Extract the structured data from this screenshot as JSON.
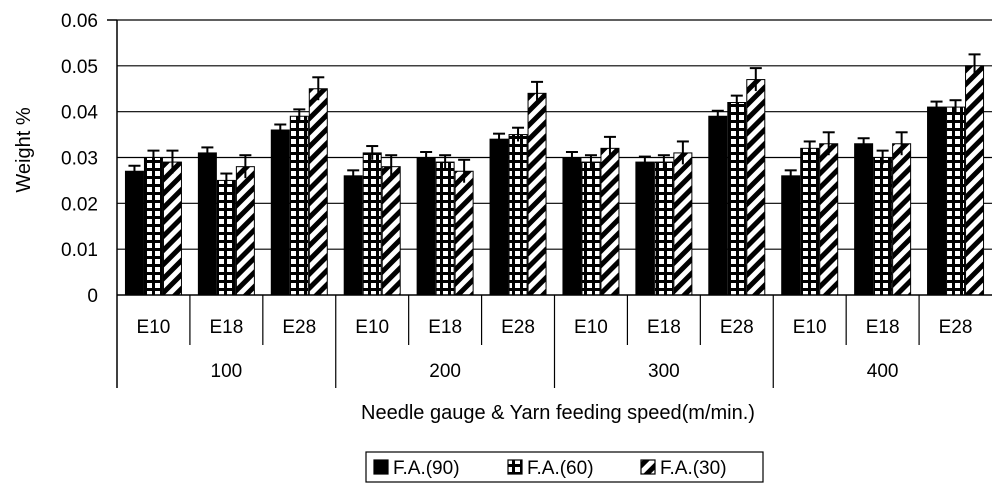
{
  "chart_data": {
    "type": "bar",
    "ylabel": "Weight %",
    "xlabel": "Needle gauge & Yarn feeding speed(m/min.)",
    "ylim": [
      0,
      0.06
    ],
    "yticks": [
      "0",
      "0.01",
      "0.02",
      "0.03",
      "0.04",
      "0.05",
      "0.06"
    ],
    "grid": true,
    "legend_position": "bottom-center",
    "groups": [
      "100",
      "200",
      "300",
      "400"
    ],
    "categories": [
      "E10",
      "E18",
      "E28",
      "E10",
      "E18",
      "E28",
      "E10",
      "E18",
      "E28",
      "E10",
      "E18",
      "E28"
    ],
    "series": [
      {
        "name": "F.A.(90)",
        "pattern": "solid",
        "values": [
          0.027,
          0.031,
          0.036,
          0.026,
          0.03,
          0.034,
          0.03,
          0.029,
          0.039,
          0.026,
          0.033,
          0.041
        ],
        "errors": [
          0.0012,
          0.0012,
          0.0012,
          0.0012,
          0.0012,
          0.0012,
          0.0012,
          0.0012,
          0.0012,
          0.0012,
          0.0012,
          0.0012
        ]
      },
      {
        "name": "F.A.(60)",
        "pattern": "dotted",
        "values": [
          0.03,
          0.025,
          0.039,
          0.031,
          0.029,
          0.035,
          0.029,
          0.029,
          0.042,
          0.032,
          0.03,
          0.041
        ],
        "errors": [
          0.0015,
          0.0015,
          0.0015,
          0.0015,
          0.0015,
          0.0015,
          0.0015,
          0.0015,
          0.0015,
          0.0015,
          0.0015,
          0.0015
        ]
      },
      {
        "name": "F.A.(30)",
        "pattern": "diagonal",
        "values": [
          0.029,
          0.028,
          0.045,
          0.028,
          0.027,
          0.044,
          0.032,
          0.031,
          0.047,
          0.033,
          0.033,
          0.05
        ],
        "errors": [
          0.0025,
          0.0025,
          0.0025,
          0.0025,
          0.0025,
          0.0025,
          0.0025,
          0.0025,
          0.0025,
          0.0025,
          0.0025,
          0.0025
        ]
      }
    ]
  }
}
